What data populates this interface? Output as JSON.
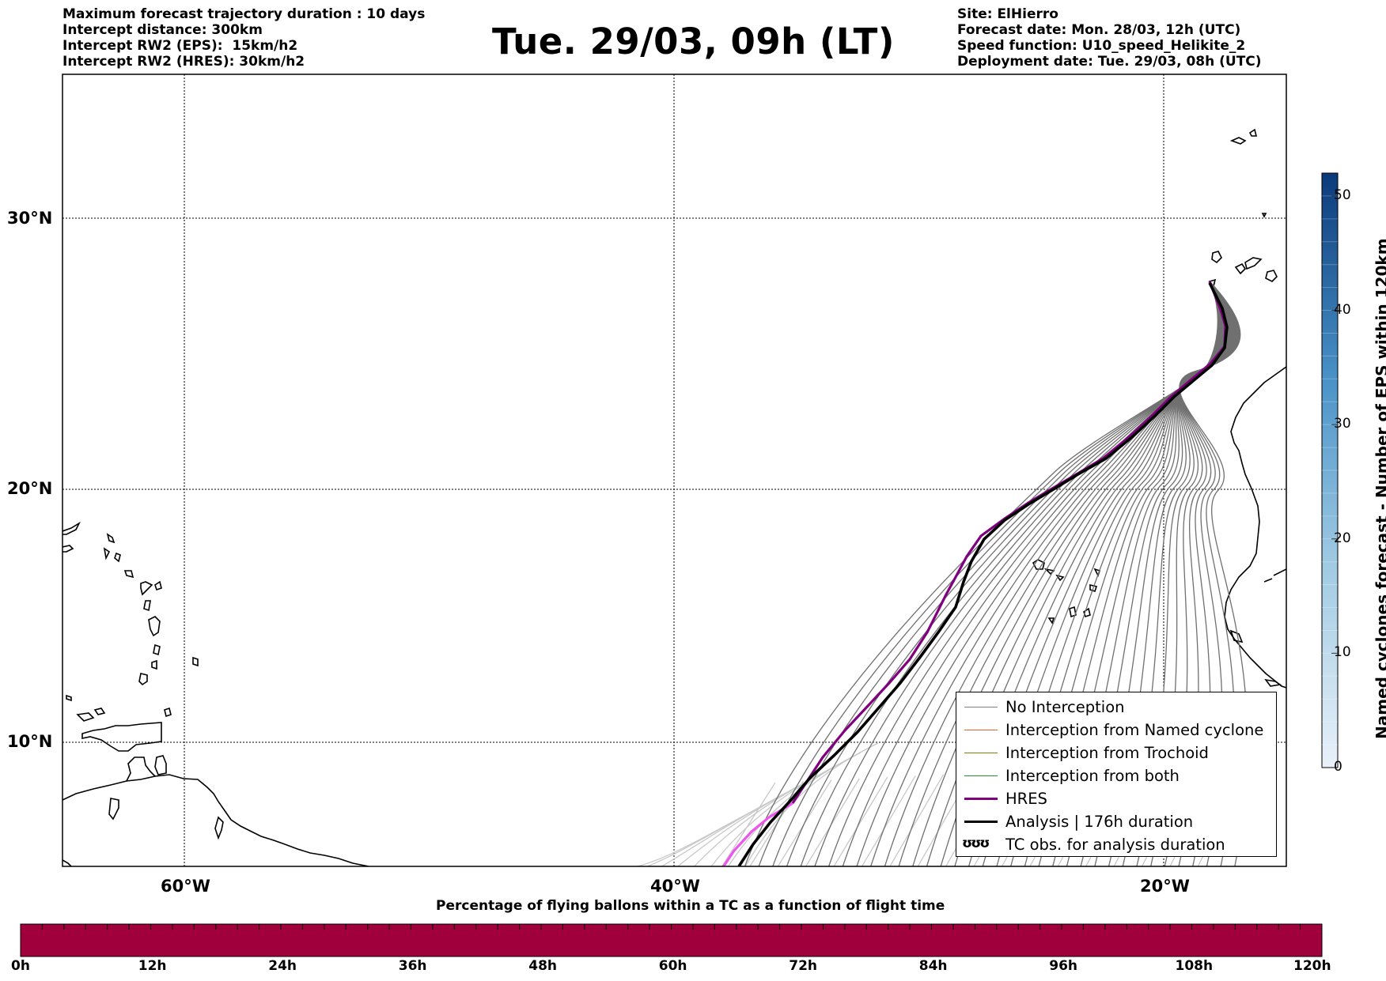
{
  "header_left": {
    "line1": "Maximum forecast trajectory duration : 10 days",
    "line2": "Intercept distance: 300km",
    "line3": "Intercept RW2 (EPS):  15km/h2",
    "line4": "Intercept RW2 (HRES): 30km/h2"
  },
  "title": "Tue. 29/03, 09h (LT)",
  "header_right": {
    "site": "Site: ElHierro",
    "forecast_date": "Forecast date: Mon. 28/03, 12h (UTC)",
    "speed_function": "Speed function: U10_speed_Helikite_2",
    "deployment_date": "Deployment date: Tue. 29/03, 08h (UTC)"
  },
  "map": {
    "lat_labels": [
      "30°N",
      "20°N",
      "10°N"
    ],
    "lon_labels": [
      "60°W",
      "40°W",
      "20°W"
    ],
    "lon_range": [
      -65,
      -15
    ],
    "lat_range": [
      5.3,
      34.7
    ]
  },
  "legend": {
    "items": [
      {
        "label": "No Interception",
        "color": "#808080"
      },
      {
        "label": "Interception from Named cyclone",
        "color": "#e8602c"
      },
      {
        "label": "Interception from Trochoid",
        "color": "#808000"
      },
      {
        "label": "Interception from both",
        "color": "#2e8b2e"
      },
      {
        "label": "HRES",
        "color": "#800080"
      },
      {
        "label": "Analysis | 176h duration",
        "color": "#000000"
      },
      {
        "label": "TC obs. for analysis duration",
        "glyph": "ʊʊʊ"
      }
    ]
  },
  "colorbar_right": {
    "title": "Named cyclones forecast - Number of EPS within 120km",
    "ticks": [
      "0",
      "10",
      "20",
      "30",
      "40",
      "50"
    ],
    "range": [
      0,
      52
    ],
    "color_low": "#e6eef8",
    "color_high": "#0b3a7a"
  },
  "bottom_bar": {
    "title": "Percentage of flying ballons within a TC as a function of flight time",
    "ticks": [
      "0h",
      "12h",
      "24h",
      "36h",
      "48h",
      "60h",
      "72h",
      "84h",
      "96h",
      "108h",
      "120h"
    ],
    "color": "#a0003c"
  },
  "colors": {
    "hres": "#800080",
    "hres_light": "#ee55ee",
    "analysis": "#000000",
    "eps_dark": "#707070",
    "eps_light": "#c8c8c8"
  }
}
